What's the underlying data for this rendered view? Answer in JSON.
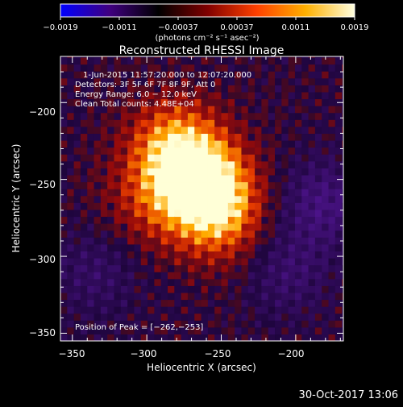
{
  "chart_data": {
    "type": "heatmap",
    "title": "Reconstructed RHESSI Image",
    "xlabel": "Heliocentric X (arcsec)",
    "ylabel": "Heliocentric Y (arcsec)",
    "xlim": [
      -358,
      -168
    ],
    "ylim": [
      -355,
      -170
    ],
    "x_ticks": [
      -350,
      -300,
      -250,
      -200
    ],
    "y_ticks": [
      -200,
      -250,
      -300,
      -350
    ],
    "x_tick_labels": [
      "−350",
      "−300",
      "−250",
      "−200"
    ],
    "y_tick_labels": [
      "−200",
      "−250",
      "−300",
      "−350"
    ],
    "colorbar": {
      "range": [
        -0.0019,
        0.0019
      ],
      "tick_labels": [
        "−0.0019",
        "−0.0011",
        "−0.00037",
        "0.00037",
        "0.0011",
        "0.0019"
      ],
      "units_label": "(photons cm⁻² s⁻¹ asec⁻²)",
      "colors": [
        "#0000ff",
        "#400080",
        "#000000",
        "#800000",
        "#ff4000",
        "#ffb000",
        "#ffffe0"
      ]
    },
    "info_lines": [
      "1-Jun-2015 11:57:20.000 to 12:07:20.000",
      "Detectors: 3F 5F 6F 7F 8F 9F, Att 0",
      "Energy Range: 6.0 − 12.0 keV",
      "Clean     Total counts: 4.48E+04"
    ],
    "peak_label": "Position of Peak = [−262,−253]",
    "peak": [
      -262,
      -253
    ],
    "sources": [
      {
        "x": -262,
        "y": -253,
        "strength": 1.0
      },
      {
        "x": -282,
        "y": -228,
        "strength": 0.75
      },
      {
        "x": -250,
        "y": -275,
        "strength": 0.55
      },
      {
        "x": -300,
        "y": -265,
        "strength": 0.35
      }
    ],
    "negative_regions": [
      {
        "x": -182,
        "y": -265,
        "strength": 0.5
      },
      {
        "x": -205,
        "y": -310,
        "strength": 0.35
      },
      {
        "x": -335,
        "y": -310,
        "strength": 0.3
      }
    ]
  },
  "footer": {
    "timestamp": "30-Oct-2017 13:06"
  }
}
